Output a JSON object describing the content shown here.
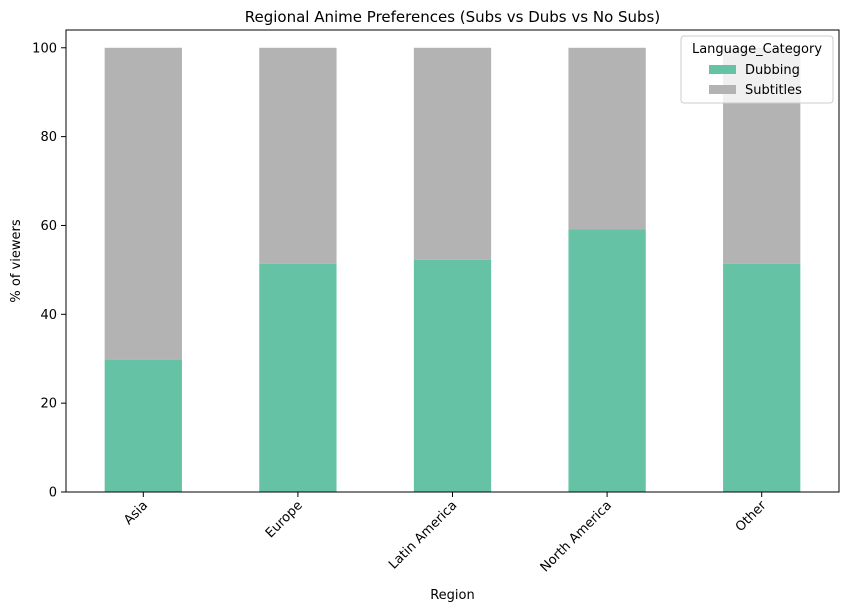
{
  "chart_data": {
    "type": "bar",
    "stacked": true,
    "title": "Regional Anime Preferences (Subs vs Dubs vs No Subs)",
    "xlabel": "Region",
    "ylabel": "% of viewers",
    "categories": [
      "Asia",
      "Europe",
      "Latin America",
      "North America",
      "Other"
    ],
    "series": [
      {
        "name": "Dubbing",
        "color": "#66c2a5",
        "values": [
          29.8,
          51.4,
          52.3,
          59.1,
          51.4
        ]
      },
      {
        "name": "Subtitles",
        "color": "#b3b3b3",
        "values": [
          70.2,
          48.6,
          47.7,
          40.9,
          48.6
        ]
      }
    ],
    "ylim": [
      0,
      104
    ],
    "yticks": [
      0,
      20,
      40,
      60,
      80,
      100
    ],
    "legend_title": "Language_Category",
    "legend_position": "top-right",
    "grid": false
  }
}
